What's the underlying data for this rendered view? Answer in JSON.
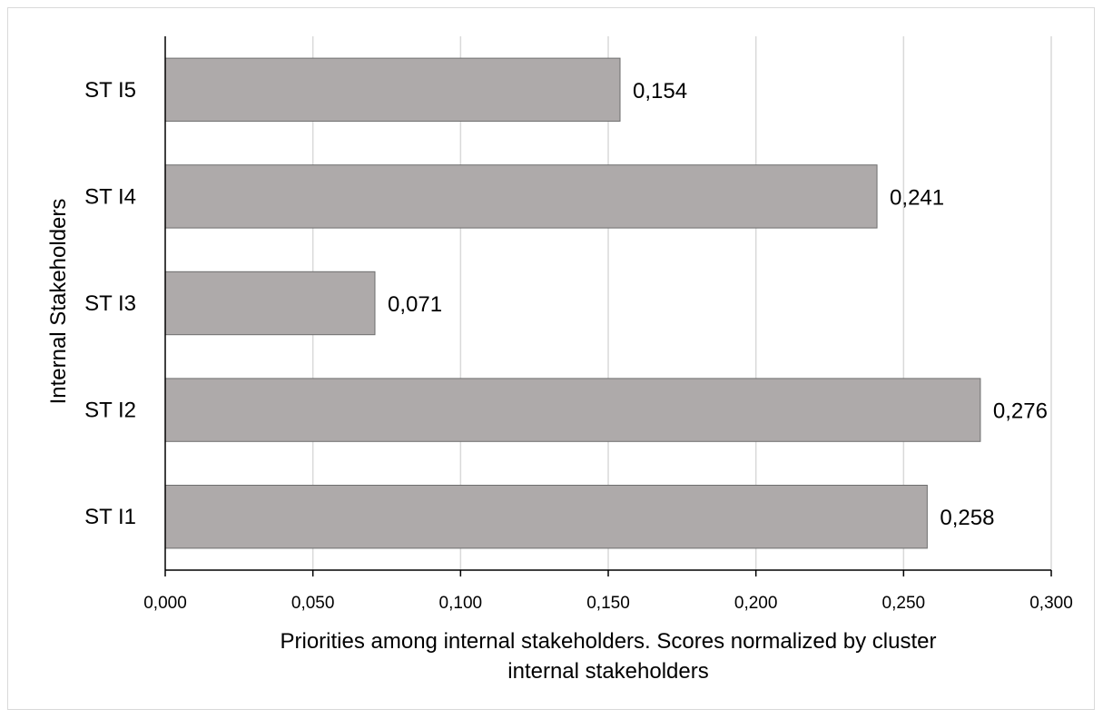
{
  "chart_data": {
    "type": "bar",
    "orientation": "horizontal",
    "categories": [
      "ST I1",
      "ST I2",
      "ST I3",
      "ST I4",
      "ST I5"
    ],
    "values": [
      0.258,
      0.276,
      0.071,
      0.241,
      0.154
    ],
    "value_labels": [
      "0,258",
      "0,276",
      "0,071",
      "0,241",
      "0,154"
    ],
    "xlabel_lines": [
      "Priorities among internal stakeholders. Scores normalized by cluster",
      "internal stakeholders"
    ],
    "ylabel": "Internal Stakeholders",
    "xlim": [
      0,
      0.3
    ],
    "x_ticks": [
      0,
      0.05,
      0.1,
      0.15,
      0.2,
      0.25,
      0.3
    ],
    "x_tick_labels": [
      "0,000",
      "0,050",
      "0,100",
      "0,150",
      "0,200",
      "0,250",
      "0,300"
    ],
    "grid": "vertical",
    "legend": "none",
    "colors": {
      "bar_fill": "#aeaaaa",
      "bar_stroke": "#6e6e6e",
      "grid": "#d9d9d9",
      "axis": "#000000"
    }
  }
}
